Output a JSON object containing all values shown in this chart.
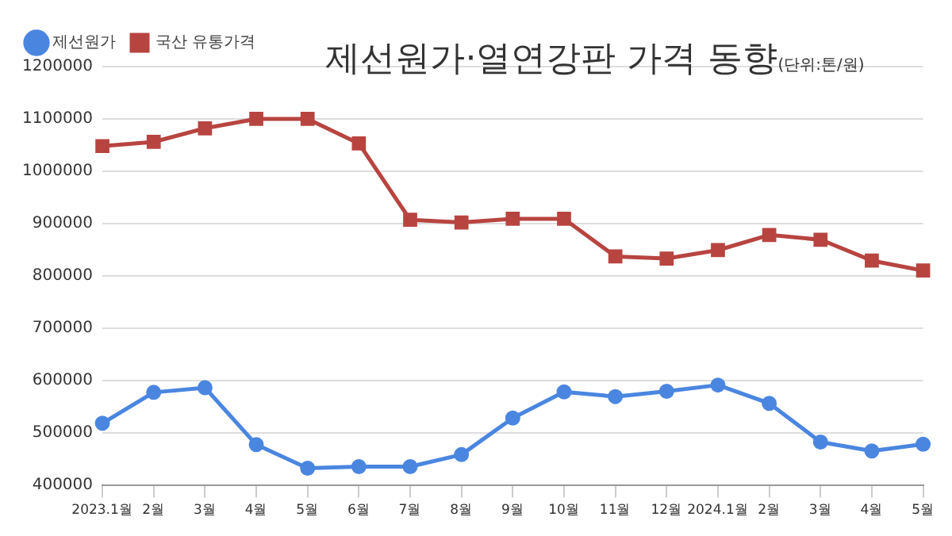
{
  "chart_data": {
    "type": "line",
    "title": "제선원가·열연강판 가격 동향",
    "subtitle": "(단위:톤/원)",
    "categories": [
      "2023.1월",
      "2월",
      "3월",
      "4월",
      "5월",
      "6월",
      "7월",
      "8월",
      "9월",
      "10월",
      "11월",
      "12월",
      "2024.1월",
      "2월",
      "3월",
      "4월",
      "5월"
    ],
    "series": [
      {
        "name": "제선원가",
        "color": "#4a86e0",
        "marker": "circle",
        "values": [
          518000,
          577000,
          586000,
          477000,
          432000,
          435000,
          435000,
          458000,
          528000,
          578000,
          569000,
          579000,
          591000,
          556000,
          482000,
          465000,
          478000
        ]
      },
      {
        "name": "국산 유통가격",
        "color": "#b84440",
        "marker": "square",
        "values": [
          1048000,
          1056000,
          1082000,
          1100000,
          1100000,
          1053000,
          907000,
          902000,
          909000,
          909000,
          837000,
          833000,
          849000,
          878000,
          869000,
          829000,
          810000
        ]
      }
    ],
    "ylim": [
      400000,
      1200000
    ],
    "yticks": [
      400000,
      500000,
      600000,
      700000,
      800000,
      900000,
      1000000,
      1100000,
      1200000
    ],
    "grid": "y",
    "legend": "top left"
  }
}
